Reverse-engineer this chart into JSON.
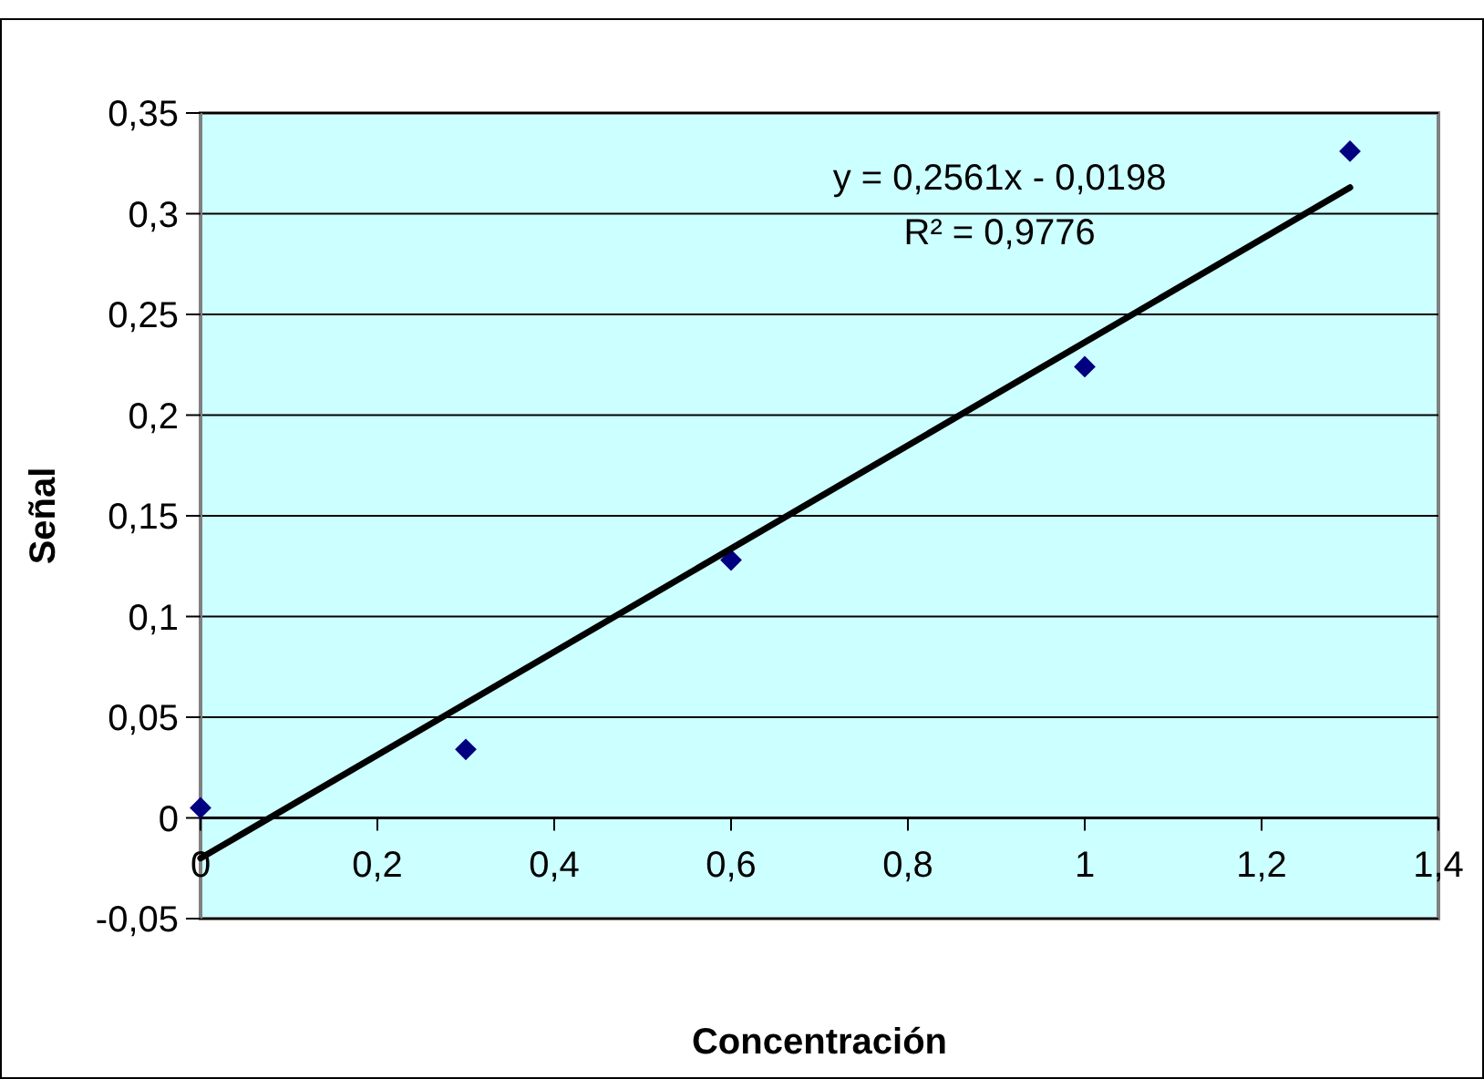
{
  "chart_data": {
    "type": "scatter",
    "xlabel": "Concentración",
    "ylabel": "Señal",
    "xlim": [
      0,
      1.4
    ],
    "ylim": [
      -0.05,
      0.35
    ],
    "xticks": [
      0,
      {
        "value": 0.2,
        "label": "0,2"
      },
      {
        "value": 0.4,
        "label": "0,4"
      },
      {
        "value": 0.6,
        "label": "0,6"
      },
      {
        "value": 0.8,
        "label": "0,8"
      },
      1,
      {
        "value": 1.2,
        "label": "1,2"
      },
      {
        "value": 1.4,
        "label": "1,4"
      }
    ],
    "yticks": [
      {
        "value": -0.05,
        "label": "-0,05"
      },
      0,
      {
        "value": 0.05,
        "label": "0,05"
      },
      {
        "value": 0.1,
        "label": "0,1"
      },
      {
        "value": 0.15,
        "label": "0,15"
      },
      {
        "value": 0.2,
        "label": "0,2"
      },
      {
        "value": 0.25,
        "label": "0,25"
      },
      {
        "value": 0.3,
        "label": "0,3"
      },
      {
        "value": 0.35,
        "label": "0,35"
      }
    ],
    "grid": "y",
    "series": [
      {
        "color": "#000080",
        "marker": "diamond",
        "x": [
          0,
          0.3,
          0.6,
          1,
          1.3
        ],
        "values": [
          0.005,
          0.034,
          0.128,
          0.224,
          0.331
        ]
      },
      {
        "type": "line",
        "color": "#000000",
        "marker": "none",
        "line_style": "solid",
        "x": [
          0,
          1.3
        ],
        "values": [
          -0.02,
          0.313
        ]
      }
    ],
    "annotations": [
      "y = 0,2561x - 0,0198",
      "R² = 0,9776"
    ]
  }
}
